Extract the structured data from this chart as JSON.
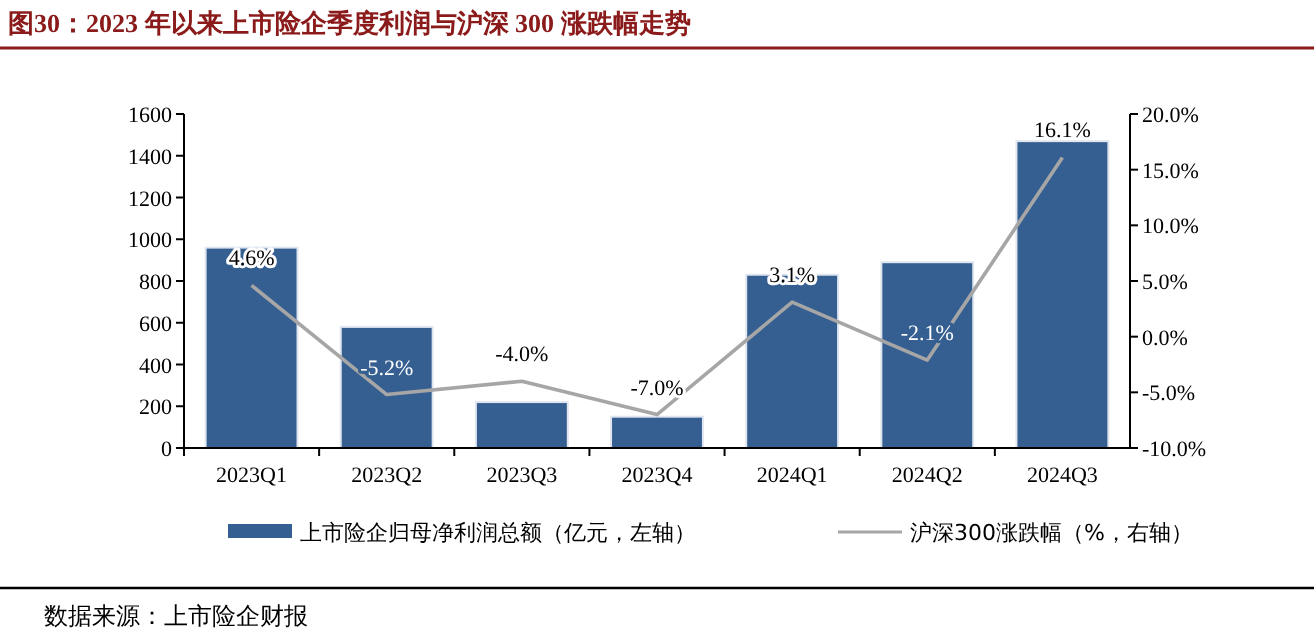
{
  "chart_data": {
    "type": "bar",
    "title": "图30：2023 年以来上市险企季度利润与沪深 300 涨跌幅走势",
    "categories": [
      "2023Q1",
      "2023Q2",
      "2023Q3",
      "2023Q4",
      "2024Q1",
      "2024Q2",
      "2024Q3"
    ],
    "series": [
      {
        "name": "上市险企归母净利润总额（亿元，左轴）",
        "color": "#365f91",
        "values": [
          960,
          580,
          220,
          150,
          830,
          890,
          1470
        ]
      },
      {
        "name": "沪深300涨跌幅（%，右轴）",
        "type": "line",
        "axis": "y2",
        "color": "#a6a6a6",
        "values": [
          4.6,
          -5.2,
          -4.0,
          -7.0,
          3.1,
          -2.1,
          16.1
        ],
        "value_labels": [
          "4.6%",
          "-5.2%",
          "-4.0%",
          "-7.0%",
          "3.1%",
          "-2.1%",
          "16.1%"
        ]
      }
    ],
    "ylim": [
      0,
      1600
    ],
    "yticks": [
      0,
      200,
      400,
      600,
      800,
      1000,
      1200,
      1400,
      1600
    ],
    "y2lim": [
      -10,
      20
    ],
    "y2ticks": [
      {
        "value": -10,
        "label": "-10.0%"
      },
      {
        "value": -5,
        "label": "-5.0%"
      },
      {
        "value": 0,
        "label": "0.0%"
      },
      {
        "value": 5,
        "label": "5.0%"
      },
      {
        "value": 10,
        "label": "10.0%"
      },
      {
        "value": 15,
        "label": "15.0%"
      },
      {
        "value": 20,
        "label": "20.0%"
      }
    ],
    "legend": "bottom",
    "grid": false,
    "annotations": [
      "数据来源：上市险企财报"
    ]
  }
}
